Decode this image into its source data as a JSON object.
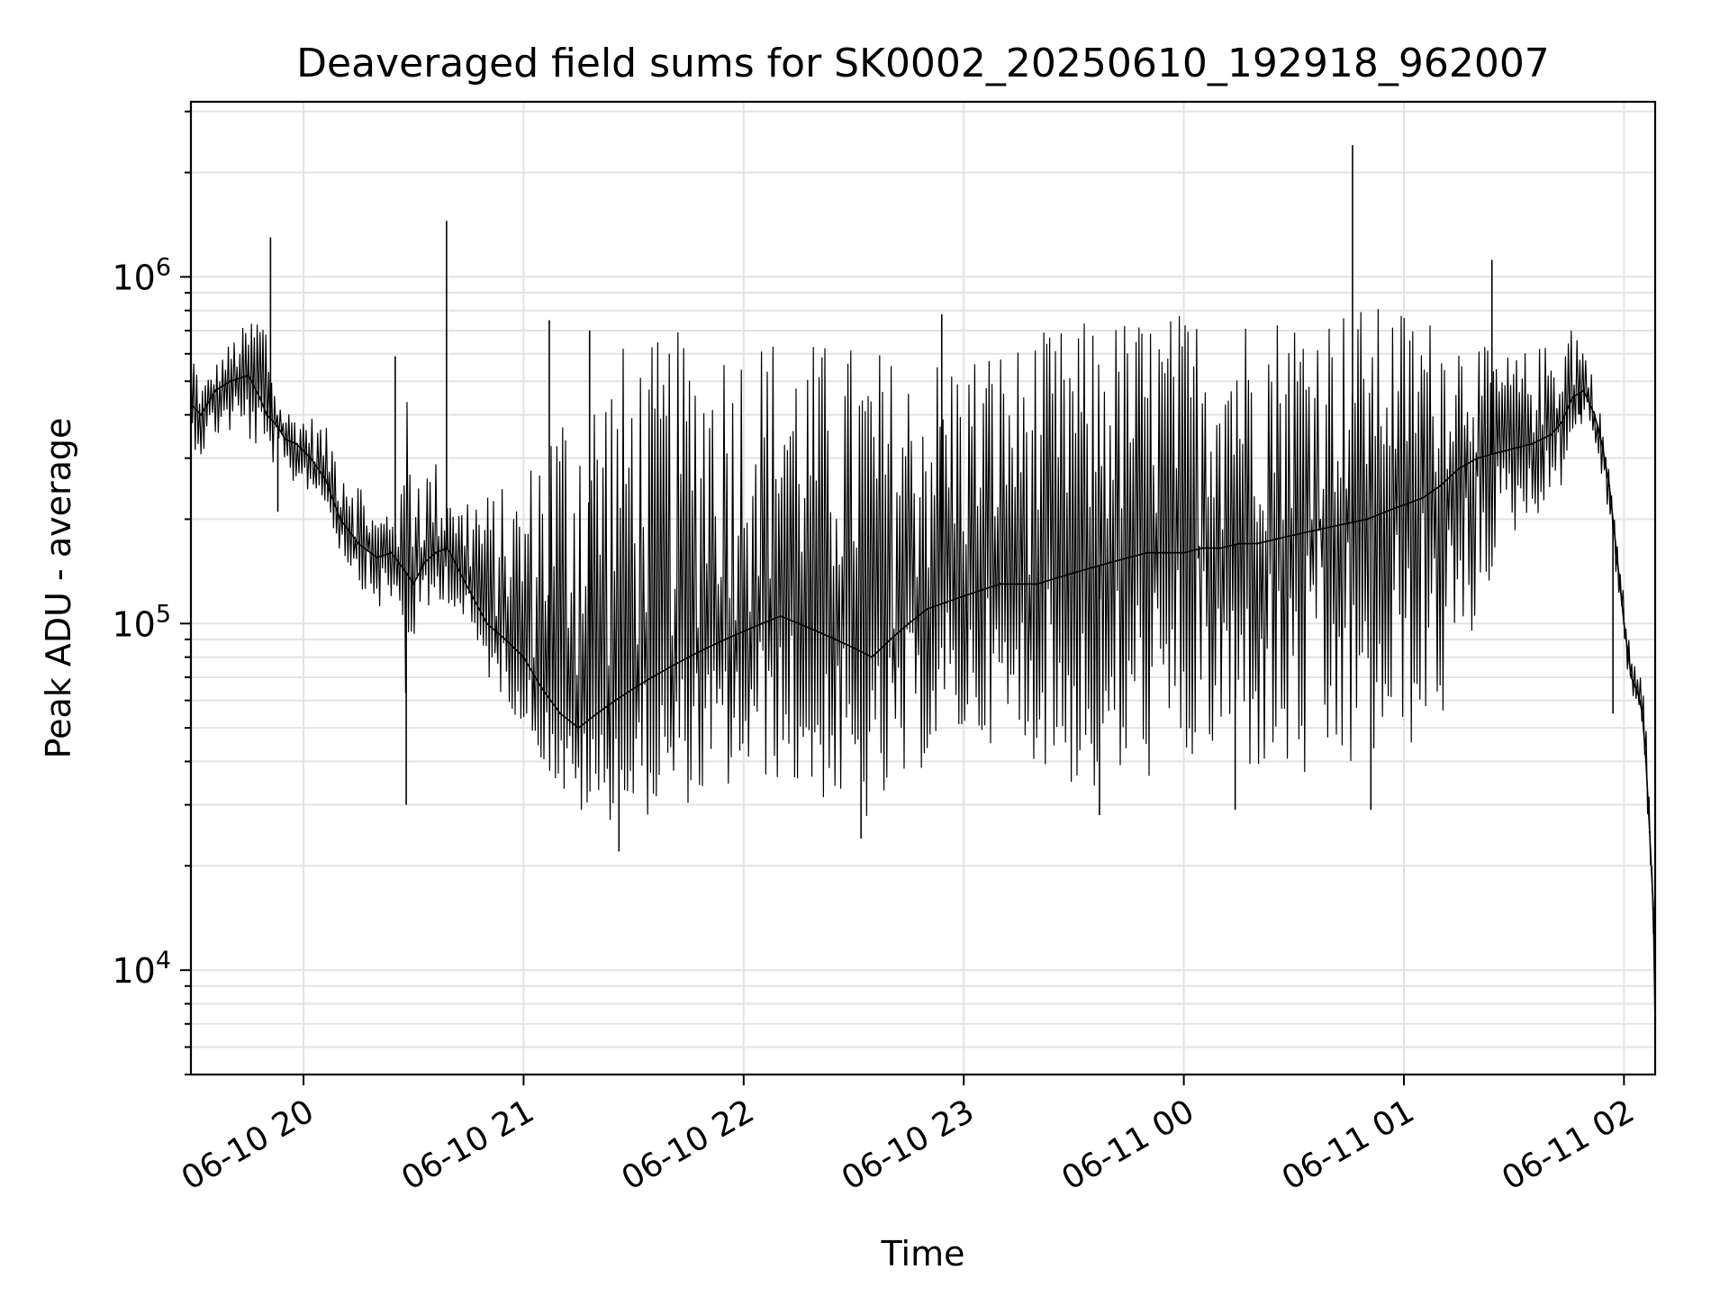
{
  "chart_data": {
    "type": "line",
    "title": "Deaveraged field sums for SK0002_20250610_192918_962007",
    "xlabel": "Time",
    "ylabel": "Peak ADU - average",
    "y_scale": "log",
    "ylim": [
      5000,
      3200000
    ],
    "xlim": [
      "2025-06-10 19:29:18",
      "2025-06-11 02:08:30"
    ],
    "x_ticks": [
      {
        "t": "2025-06-10 20:00",
        "label": "06-10 20"
      },
      {
        "t": "2025-06-10 21:00",
        "label": "06-10 21"
      },
      {
        "t": "2025-06-10 22:00",
        "label": "06-10 22"
      },
      {
        "t": "2025-06-10 23:00",
        "label": "06-10 23"
      },
      {
        "t": "2025-06-11 00:00",
        "label": "06-11 00"
      },
      {
        "t": "2025-06-11 01:00",
        "label": "06-11 01"
      },
      {
        "t": "2025-06-11 02:00",
        "label": "06-11 02"
      }
    ],
    "y_ticks": [
      {
        "value": 10000,
        "base": "10",
        "exp": "4"
      },
      {
        "value": 100000,
        "base": "10",
        "exp": "5"
      },
      {
        "value": 1000000,
        "base": "10",
        "exp": "6"
      }
    ],
    "grid": true,
    "legend": "none",
    "line_color": "#000000",
    "series": [
      {
        "x": [
          "2025-06-10 19:29:18",
          "2025-06-10 19:32",
          "2025-06-10 19:36",
          "2025-06-10 19:40",
          "2025-06-10 19:45",
          "2025-06-10 19:48",
          "2025-06-10 19:50",
          "2025-06-10 19:53",
          "2025-06-10 19:55",
          "2025-06-10 19:58",
          "2025-06-10 20:02",
          "2025-06-10 20:06",
          "2025-06-10 20:10",
          "2025-06-10 20:15",
          "2025-06-10 20:20",
          "2025-06-10 20:24",
          "2025-06-10 20:27",
          "2025-06-10 20:28",
          "2025-06-10 20:30",
          "2025-06-10 20:33",
          "2025-06-10 20:36",
          "2025-06-10 20:39",
          "2025-06-10 20:40",
          "2025-06-10 20:42",
          "2025-06-10 20:46",
          "2025-06-10 20:50",
          "2025-06-10 20:55",
          "2025-06-10 21:00",
          "2025-06-10 21:05",
          "2025-06-10 21:10",
          "2025-06-10 21:15",
          "2025-06-10 21:20",
          "2025-06-10 21:25",
          "2025-06-10 21:30",
          "2025-06-10 21:35",
          "2025-06-10 21:40",
          "2025-06-10 21:45",
          "2025-06-10 21:50",
          "2025-06-10 21:55",
          "2025-06-10 22:00",
          "2025-06-10 22:05",
          "2025-06-10 22:10",
          "2025-06-10 22:15",
          "2025-06-10 22:20",
          "2025-06-10 22:25",
          "2025-06-10 22:30",
          "2025-06-10 22:35",
          "2025-06-10 22:40",
          "2025-06-10 22:45",
          "2025-06-10 22:50",
          "2025-06-10 22:55",
          "2025-06-10 23:00",
          "2025-06-10 23:05",
          "2025-06-10 23:10",
          "2025-06-10 23:15",
          "2025-06-10 23:20",
          "2025-06-10 23:25",
          "2025-06-10 23:30",
          "2025-06-10 23:35",
          "2025-06-10 23:40",
          "2025-06-10 23:45",
          "2025-06-10 23:50",
          "2025-06-10 23:55",
          "2025-06-11 00:00",
          "2025-06-11 00:05",
          "2025-06-11 00:10",
          "2025-06-11 00:15",
          "2025-06-11 00:20",
          "2025-06-11 00:25",
          "2025-06-11 00:30",
          "2025-06-11 00:35",
          "2025-06-11 00:40",
          "2025-06-11 00:45",
          "2025-06-11 00:50",
          "2025-06-11 00:55",
          "2025-06-11 01:00",
          "2025-06-11 01:05",
          "2025-06-11 01:10",
          "2025-06-11 01:15",
          "2025-06-11 01:20",
          "2025-06-11 01:25",
          "2025-06-11 01:30",
          "2025-06-11 01:35",
          "2025-06-11 01:40",
          "2025-06-11 01:43",
          "2025-06-11 01:46",
          "2025-06-11 01:49",
          "2025-06-11 01:52",
          "2025-06-11 01:54",
          "2025-06-11 01:56",
          "2025-06-11 01:58",
          "2025-06-11 02:00",
          "2025-06-11 02:02",
          "2025-06-11 02:04",
          "2025-06-11 02:05",
          "2025-06-11 02:06",
          "2025-06-11 02:07",
          "2025-06-11 02:08",
          "2025-06-11 02:08:30"
        ],
        "y": [
          430000,
          400000,
          470000,
          500000,
          520000,
          450000,
          400000,
          370000,
          340000,
          330000,
          300000,
          260000,
          200000,
          170000,
          155000,
          160000,
          145000,
          140000,
          130000,
          150000,
          160000,
          165000,
          160000,
          145000,
          120000,
          100000,
          90000,
          80000,
          65000,
          55000,
          50000,
          55000,
          60000,
          65000,
          70000,
          75000,
          80000,
          85000,
          90000,
          95000,
          100000,
          105000,
          100000,
          95000,
          90000,
          85000,
          80000,
          90000,
          100000,
          110000,
          115000,
          120000,
          125000,
          130000,
          130000,
          130000,
          135000,
          140000,
          145000,
          150000,
          155000,
          160000,
          160000,
          160000,
          165000,
          165000,
          170000,
          170000,
          175000,
          180000,
          185000,
          190000,
          195000,
          200000,
          210000,
          220000,
          230000,
          250000,
          280000,
          300000,
          310000,
          320000,
          330000,
          350000,
          380000,
          450000,
          470000,
          400000,
          330000,
          250000,
          160000,
          100000,
          70000,
          62000,
          55000,
          40000,
          25000,
          15000,
          7000
        ],
        "band_upper": [
          700000,
          480000,
          560000,
          650000,
          750000,
          850000,
          780000,
          440000,
          420000,
          400000,
          400000,
          370000,
          320000,
          270000,
          200000,
          230000,
          240000,
          560000,
          330000,
          290000,
          300000,
          220000,
          350000,
          220000,
          260000,
          240000,
          250000,
          250000,
          400000,
          470000,
          560000,
          550000,
          650000,
          650000,
          650000,
          700000,
          700000,
          700000,
          700000,
          700000,
          700000,
          700000,
          660000,
          660000,
          650000,
          650000,
          650000,
          600000,
          560000,
          600000,
          620000,
          620000,
          650000,
          650000,
          650000,
          700000,
          700000,
          750000,
          750000,
          760000,
          780000,
          780000,
          790000,
          800000,
          800000,
          800000,
          810000,
          800000,
          810000,
          820000,
          820000,
          830000,
          830000,
          830000,
          820000,
          820000,
          790000,
          740000,
          700000,
          650000,
          600000,
          600000,
          620000,
          650000,
          700000,
          800000,
          650000,
          500000,
          380000,
          280000,
          180000,
          120000,
          85000,
          75000,
          68000,
          55000,
          38000,
          22000,
          12000
        ],
        "band_lower": [
          330000,
          300000,
          340000,
          350000,
          330000,
          310000,
          300000,
          280000,
          250000,
          250000,
          240000,
          220000,
          160000,
          130000,
          110000,
          110000,
          100000,
          50000,
          90000,
          100000,
          110000,
          120000,
          110000,
          105000,
          90000,
          70000,
          60000,
          50000,
          40000,
          32000,
          28000,
          27000,
          27000,
          27000,
          28000,
          30000,
          30000,
          31000,
          32000,
          35000,
          35000,
          35000,
          32000,
          31000,
          30000,
          27000,
          26000,
          30000,
          33000,
          40000,
          45000,
          46000,
          46000,
          44000,
          42000,
          40000,
          36000,
          33000,
          31000,
          32000,
          34000,
          35000,
          36000,
          37000,
          38000,
          40000,
          38000,
          36000,
          35000,
          33000,
          32000,
          34000,
          35000,
          38000,
          40000,
          42000,
          45000,
          50000,
          60000,
          100000,
          150000,
          180000,
          200000,
          220000,
          250000,
          340000,
          380000,
          320000,
          260000,
          200000,
          130000,
          85000,
          62000,
          57000,
          50000,
          35000,
          20000,
          11000,
          6000
        ],
        "spikes": [
          {
            "t": "2025-06-10 19:51",
            "value": 1300000
          },
          {
            "t": "2025-06-10 19:53",
            "value": 210000
          },
          {
            "t": "2025-06-10 20:25",
            "value": 590000
          },
          {
            "t": "2025-06-10 20:28",
            "value": 30000
          },
          {
            "t": "2025-06-10 20:39",
            "value": 1450000
          },
          {
            "t": "2025-06-10 21:07",
            "value": 750000
          },
          {
            "t": "2025-06-10 21:18",
            "value": 700000
          },
          {
            "t": "2025-06-10 21:26",
            "value": 22000
          },
          {
            "t": "2025-06-10 22:32",
            "value": 24000
          },
          {
            "t": "2025-06-10 22:54",
            "value": 780000
          },
          {
            "t": "2025-06-10 23:37",
            "value": 28000
          },
          {
            "t": "2025-06-11 00:14",
            "value": 29000
          },
          {
            "t": "2025-06-11 00:46",
            "value": 2400000
          },
          {
            "t": "2025-06-11 00:51",
            "value": 29000
          },
          {
            "t": "2025-06-11 01:24",
            "value": 1120000
          },
          {
            "t": "2025-06-11 01:48",
            "value": 400000
          },
          {
            "t": "2025-06-11 01:57",
            "value": 55000
          }
        ]
      }
    ]
  }
}
